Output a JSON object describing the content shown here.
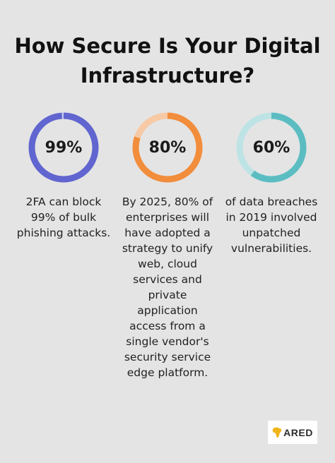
{
  "title_lines": [
    "How Secure Is Your Digital",
    "Infrastructure?"
  ],
  "colors": {
    "background": "#e4e4e4",
    "series": [
      "#6065cf",
      "#f28d3c",
      "#5bbdc2"
    ],
    "tracks": [
      "#c9cbef",
      "#f7c9a4",
      "#bde3e5"
    ]
  },
  "chart_data": {
    "type": "pie",
    "donuts": [
      {
        "value": 99,
        "label": "99%",
        "description_lines": [
          "2FA can block",
          "99% of bulk",
          "phishing attacks."
        ]
      },
      {
        "value": 80,
        "label": "80%",
        "description_lines": [
          "By 2025, 80% of",
          "enterprises will",
          "have adopted a",
          "strategy to unify",
          "web, cloud",
          "services and",
          "private",
          "application",
          "access from a",
          "single vendor's",
          "security service",
          "edge platform."
        ]
      },
      {
        "value": 60,
        "label": "60%",
        "description_lines": [
          "of data breaches",
          "in 2019 involved",
          "unpatched",
          "vulnerabilities."
        ]
      }
    ]
  },
  "logo": {
    "text": "ARED",
    "icon": "africa-map-icon"
  }
}
